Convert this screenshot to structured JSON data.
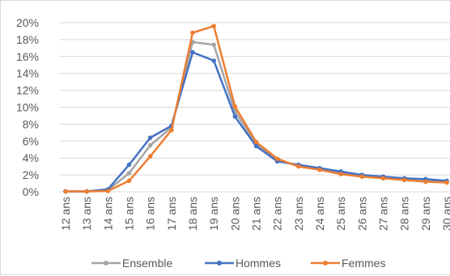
{
  "chart_data": {
    "type": "line",
    "x": [
      "12 ans",
      "13 ans",
      "14 ans",
      "15 ans",
      "16 ans",
      "17 ans",
      "18 ans",
      "19 ans",
      "20 ans",
      "21 ans",
      "22 ans",
      "23 ans",
      "24 ans",
      "25 ans",
      "26 ans",
      "27 ans",
      "28 ans",
      "29 ans",
      "30 ans"
    ],
    "ylim": [
      0,
      0.2
    ],
    "y_ticks": [
      "0%",
      "2%",
      "4%",
      "6%",
      "8%",
      "10%",
      "12%",
      "14%",
      "16%",
      "18%",
      "20%"
    ],
    "grid": true,
    "legend_position": "bottom",
    "series": [
      {
        "name": "Ensemble",
        "color": "#a5a5a5",
        "values": [
          0.0005,
          0.0005,
          0.002,
          0.022,
          0.055,
          0.076,
          0.177,
          0.174,
          0.095,
          0.057,
          0.037,
          0.031,
          0.027,
          0.022,
          0.019,
          0.017,
          0.015,
          0.013,
          0.012
        ]
      },
      {
        "name": "Hommes",
        "color": "#4472c4",
        "values": [
          0.0005,
          0.0005,
          0.003,
          0.032,
          0.064,
          0.078,
          0.165,
          0.155,
          0.089,
          0.054,
          0.036,
          0.032,
          0.028,
          0.024,
          0.02,
          0.018,
          0.016,
          0.015,
          0.013
        ]
      },
      {
        "name": "Femmes",
        "color": "#ed7d31",
        "values": [
          0.0005,
          0.0005,
          0.001,
          0.013,
          0.042,
          0.073,
          0.188,
          0.196,
          0.101,
          0.059,
          0.039,
          0.03,
          0.026,
          0.021,
          0.018,
          0.016,
          0.014,
          0.012,
          0.011
        ]
      }
    ]
  }
}
